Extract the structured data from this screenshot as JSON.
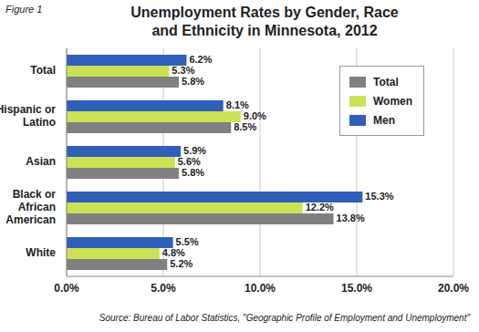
{
  "chart_data": {
    "type": "bar",
    "orientation": "horizontal",
    "figure": "Figure 1",
    "title": "Unemployment Rates by Gender, Race and Ethnicity in Minnesota, 2012",
    "source": "Source: Bureau of Labor Statistics, \"Geographic Profile of Employment and Unemployment\"",
    "categories": [
      "Total",
      "Hispanic or Latino",
      "Asian",
      "Black or African American",
      "White"
    ],
    "series": [
      {
        "name": "Total",
        "color": "#808080",
        "values": [
          5.8,
          8.5,
          5.8,
          13.8,
          5.2
        ],
        "value_labels": [
          "5.8%",
          "8.5%",
          "5.8%",
          "13.8%",
          "5.2%"
        ]
      },
      {
        "name": "Women",
        "color": "#cde155",
        "values": [
          5.3,
          9.0,
          5.6,
          12.2,
          4.8
        ],
        "value_labels": [
          "5.3%",
          "9.0%",
          "5.6%",
          "12.2%",
          "4.8%"
        ]
      },
      {
        "name": "Men",
        "color": "#2f5fb8",
        "values": [
          6.2,
          8.1,
          5.9,
          15.3,
          5.5
        ],
        "value_labels": [
          "6.2%",
          "8.1%",
          "5.9%",
          "15.3%",
          "5.5%"
        ]
      }
    ],
    "xlim": [
      0,
      20
    ],
    "xticks": [
      {
        "value": 0,
        "label": "0.0%"
      },
      {
        "value": 5,
        "label": "5.0%"
      },
      {
        "value": 10,
        "label": "10.0%"
      },
      {
        "value": 15,
        "label": "15.0%"
      },
      {
        "value": 20,
        "label": "20.0%"
      }
    ],
    "grid": true,
    "legend": "top-right",
    "data_labels": true
  }
}
